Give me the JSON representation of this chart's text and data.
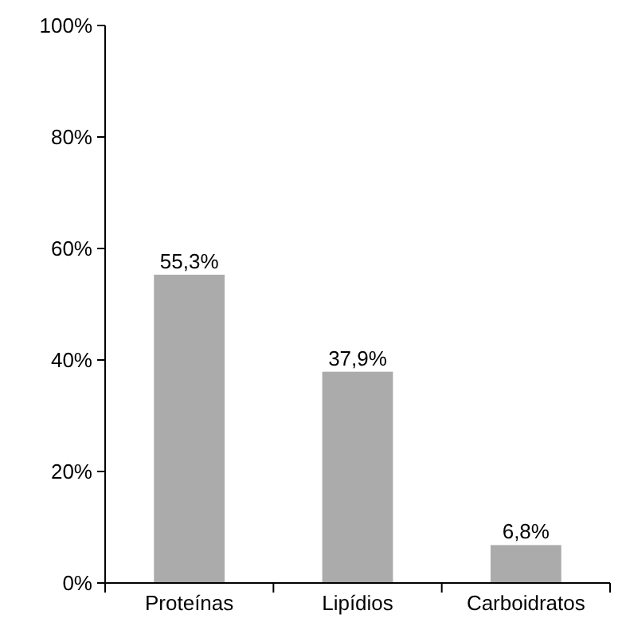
{
  "chart_data": {
    "type": "bar",
    "categories": [
      "Proteínas",
      "Lipídios",
      "Carboidratos"
    ],
    "values": [
      55.3,
      37.9,
      6.8
    ],
    "color": "#ababab",
    "value_labels": [
      "55,3%",
      "37,9%",
      "6,8%"
    ],
    "ylim": [
      0,
      100
    ],
    "yticks": [
      {
        "value": 0,
        "label": "0%"
      },
      {
        "value": 20,
        "label": "20%"
      },
      {
        "value": 40,
        "label": "40%"
      },
      {
        "value": 60,
        "label": "60%"
      },
      {
        "value": 80,
        "label": "80%"
      },
      {
        "value": 100,
        "label": "100%"
      }
    ],
    "grid": false
  }
}
